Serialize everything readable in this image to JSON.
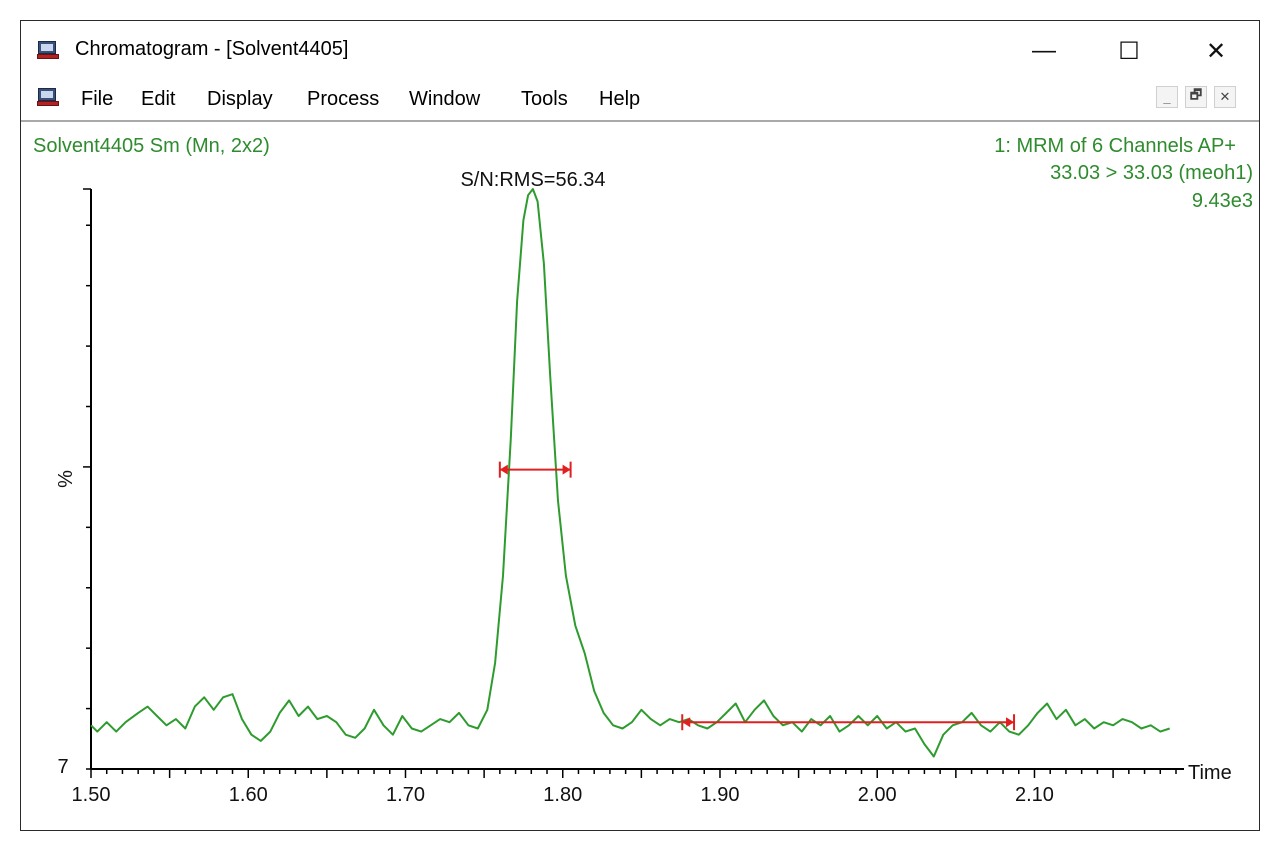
{
  "window": {
    "title": "Chromatogram - [Solvent4405]",
    "controls": {
      "minimize": "—",
      "maximize": "☐",
      "close": "✕"
    },
    "mdi_controls": {
      "minimize": "_",
      "restore": "🗗",
      "close": "✕"
    }
  },
  "menu": {
    "items": [
      "File",
      "Edit",
      "Display",
      "Process",
      "Window",
      "Tools",
      "Help"
    ]
  },
  "header": {
    "left": "Solvent4405 Sm (Mn, 2x2)",
    "right_line1": "1: MRM of 6 Channels AP+",
    "right_line2": "33.03 > 33.03 (meoh1)",
    "right_line3": "9.43e3",
    "sn_label": "S/N:RMS=56.34"
  },
  "colors": {
    "trace": "#2e9b2e",
    "annotation_text": "#2e8b2e",
    "marker": "#e02020",
    "axis": "#000000"
  },
  "chart_data": {
    "type": "line",
    "xlabel": "Time",
    "ylabel": "%",
    "xlim": [
      1.5,
      2.19
    ],
    "ylim": [
      7,
      100
    ],
    "x_ticks": [
      "1.50",
      "1.60",
      "1.70",
      "1.80",
      "1.90",
      "2.00",
      "2.10"
    ],
    "y_tick_label": "7",
    "grid": false,
    "series": [
      {
        "values": [
          [
            1.5,
            14.0
          ],
          [
            1.504,
            13.0
          ],
          [
            1.51,
            14.5
          ],
          [
            1.516,
            13.0
          ],
          [
            1.522,
            14.5
          ],
          [
            1.53,
            16.0
          ],
          [
            1.536,
            17.0
          ],
          [
            1.542,
            15.5
          ],
          [
            1.548,
            14.0
          ],
          [
            1.554,
            15.0
          ],
          [
            1.56,
            13.5
          ],
          [
            1.566,
            17.0
          ],
          [
            1.572,
            18.5
          ],
          [
            1.578,
            16.5
          ],
          [
            1.584,
            18.5
          ],
          [
            1.59,
            19.0
          ],
          [
            1.596,
            15.0
          ],
          [
            1.602,
            12.5
          ],
          [
            1.608,
            11.5
          ],
          [
            1.614,
            13.0
          ],
          [
            1.62,
            16.0
          ],
          [
            1.626,
            18.0
          ],
          [
            1.632,
            15.5
          ],
          [
            1.638,
            17.0
          ],
          [
            1.644,
            15.0
          ],
          [
            1.65,
            15.5
          ],
          [
            1.656,
            14.5
          ],
          [
            1.662,
            12.5
          ],
          [
            1.668,
            12.0
          ],
          [
            1.674,
            13.5
          ],
          [
            1.68,
            16.5
          ],
          [
            1.686,
            14.0
          ],
          [
            1.692,
            12.5
          ],
          [
            1.698,
            15.5
          ],
          [
            1.704,
            13.5
          ],
          [
            1.71,
            13.0
          ],
          [
            1.716,
            14.0
          ],
          [
            1.722,
            15.0
          ],
          [
            1.728,
            14.5
          ],
          [
            1.734,
            16.0
          ],
          [
            1.74,
            14.0
          ],
          [
            1.746,
            13.5
          ],
          [
            1.752,
            16.5
          ],
          [
            1.757,
            24.0
          ],
          [
            1.762,
            38.0
          ],
          [
            1.767,
            60.0
          ],
          [
            1.771,
            82.0
          ],
          [
            1.775,
            95.0
          ],
          [
            1.778,
            99.0
          ],
          [
            1.781,
            100.0
          ],
          [
            1.784,
            98.0
          ],
          [
            1.788,
            88.0
          ],
          [
            1.792,
            70.0
          ],
          [
            1.797,
            50.0
          ],
          [
            1.802,
            38.0
          ],
          [
            1.808,
            30.0
          ],
          [
            1.814,
            25.5
          ],
          [
            1.82,
            19.5
          ],
          [
            1.826,
            16.0
          ],
          [
            1.832,
            14.0
          ],
          [
            1.838,
            13.5
          ],
          [
            1.844,
            14.5
          ],
          [
            1.85,
            16.5
          ],
          [
            1.856,
            15.0
          ],
          [
            1.862,
            14.0
          ],
          [
            1.868,
            15.0
          ],
          [
            1.874,
            14.5
          ],
          [
            1.88,
            15.0
          ],
          [
            1.886,
            14.0
          ],
          [
            1.892,
            13.5
          ],
          [
            1.898,
            14.5
          ],
          [
            1.904,
            16.0
          ],
          [
            1.91,
            17.5
          ],
          [
            1.916,
            14.5
          ],
          [
            1.922,
            16.5
          ],
          [
            1.928,
            18.0
          ],
          [
            1.934,
            15.5
          ],
          [
            1.94,
            14.0
          ],
          [
            1.946,
            14.5
          ],
          [
            1.952,
            13.0
          ],
          [
            1.958,
            15.0
          ],
          [
            1.964,
            14.0
          ],
          [
            1.97,
            15.5
          ],
          [
            1.976,
            13.0
          ],
          [
            1.982,
            14.0
          ],
          [
            1.988,
            15.5
          ],
          [
            1.994,
            14.0
          ],
          [
            2.0,
            15.5
          ],
          [
            2.006,
            13.5
          ],
          [
            2.012,
            14.5
          ],
          [
            2.018,
            13.0
          ],
          [
            2.024,
            13.5
          ],
          [
            2.03,
            11.0
          ],
          [
            2.036,
            9.0
          ],
          [
            2.042,
            12.5
          ],
          [
            2.048,
            14.0
          ],
          [
            2.054,
            14.5
          ],
          [
            2.06,
            16.0
          ],
          [
            2.066,
            14.0
          ],
          [
            2.072,
            13.0
          ],
          [
            2.078,
            14.5
          ],
          [
            2.084,
            13.0
          ],
          [
            2.09,
            12.5
          ],
          [
            2.096,
            14.0
          ],
          [
            2.102,
            16.0
          ],
          [
            2.108,
            17.5
          ],
          [
            2.114,
            15.0
          ],
          [
            2.12,
            16.5
          ],
          [
            2.126,
            14.0
          ],
          [
            2.132,
            15.0
          ],
          [
            2.138,
            13.5
          ],
          [
            2.144,
            14.5
          ],
          [
            2.15,
            14.0
          ],
          [
            2.156,
            15.0
          ],
          [
            2.162,
            14.5
          ],
          [
            2.168,
            13.5
          ],
          [
            2.174,
            14.0
          ],
          [
            2.18,
            13.0
          ],
          [
            2.186,
            13.5
          ]
        ]
      }
    ],
    "markers": [
      {
        "x1": 1.76,
        "x2": 1.805,
        "y": 55.0
      },
      {
        "x1": 1.876,
        "x2": 2.087,
        "y": 14.5
      }
    ]
  }
}
